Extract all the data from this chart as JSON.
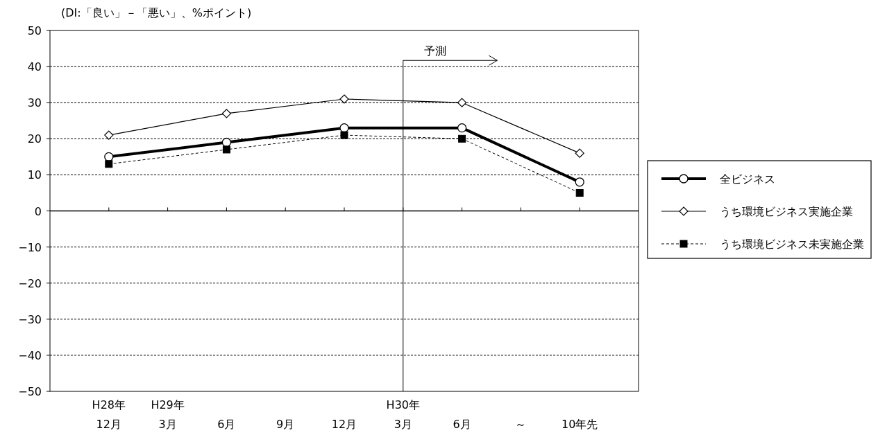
{
  "chart_data": {
    "type": "line",
    "ylabel": "(DI:「良い」－「悪い」、%ポイント)",
    "categories": [
      "H28年\n12月",
      "H29年\n3月",
      "6月",
      "9月",
      "12月",
      "H30年\n3月",
      "6月",
      "～",
      "10年先"
    ],
    "series": [
      {
        "name": "全ビジネス",
        "color": "#000000",
        "marker": "circle",
        "line_style": "solid",
        "values": [
          15,
          null,
          19,
          null,
          23,
          null,
          23,
          null,
          8
        ]
      },
      {
        "name": "うち環境ビジネス実施企業",
        "color": "#000000",
        "marker": "diamond",
        "line_style": "solid",
        "values": [
          21,
          null,
          27,
          null,
          31,
          null,
          30,
          null,
          16
        ]
      },
      {
        "name": "うち環境ビジネス未実施企業",
        "color": "#000000",
        "marker": "square",
        "line_style": "dashed",
        "values": [
          13,
          null,
          17,
          null,
          21,
          null,
          20,
          null,
          5
        ]
      }
    ],
    "ylim": [
      -50,
      50
    ],
    "yticks": [
      -50,
      -40,
      -30,
      -20,
      -10,
      0,
      10,
      20,
      30,
      40,
      50
    ],
    "grid": "y",
    "legend": "right",
    "ref_lines": [
      {
        "axis": "x",
        "value": "H30年\n3月",
        "label": "予測"
      }
    ]
  }
}
